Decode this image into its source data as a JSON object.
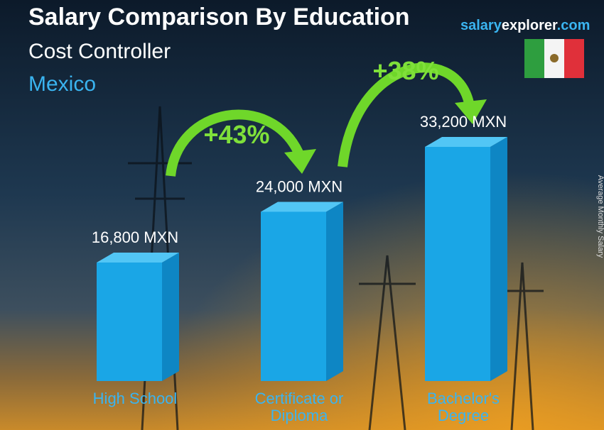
{
  "chart_data": {
    "type": "bar",
    "title": "Salary Comparison By Education",
    "subtitle": "Cost Controller",
    "country": "Mexico",
    "brand": [
      "salary",
      "explorer",
      ".com"
    ],
    "y_label": "Average Monthly Salary",
    "categories": [
      "High School",
      "Certificate or Diploma",
      "Bachelor's Degree"
    ],
    "values": [
      16800,
      24000,
      33200
    ],
    "value_labels": [
      "16,800 MXN",
      "24,000 MXN",
      "33,200 MXN"
    ],
    "annotations": [
      "+43%",
      "+38%"
    ],
    "color": "#1aa6e6"
  }
}
